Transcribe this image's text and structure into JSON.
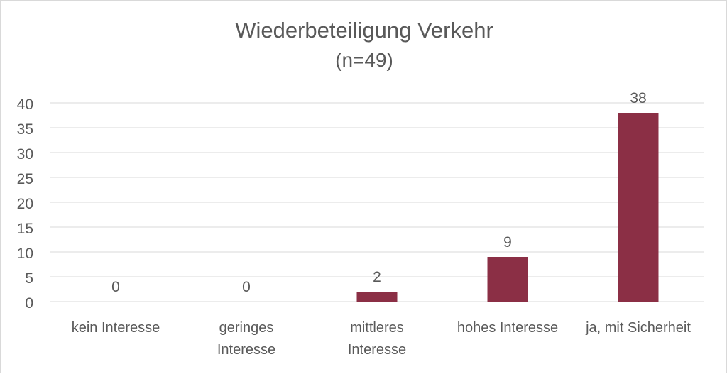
{
  "chart_data": {
    "type": "bar",
    "title": "Wiederbeteiligung Verkehr",
    "subtitle": "(n=49)",
    "categories": [
      [
        "kein Interesse"
      ],
      [
        "geringes",
        "Interesse"
      ],
      [
        "mittleres",
        "Interesse"
      ],
      [
        "hohes Interesse"
      ],
      [
        "ja, mit Sicherheit"
      ]
    ],
    "values": [
      0,
      0,
      2,
      9,
      38
    ],
    "ylim": [
      0,
      40
    ],
    "yticks": [
      0,
      5,
      10,
      15,
      20,
      25,
      30,
      35,
      40
    ],
    "grid": true,
    "data_labels": true,
    "legend": "none",
    "colors": {
      "bar": "#8b2f45",
      "grid": "#d9d9d9",
      "text": "#595959"
    }
  }
}
